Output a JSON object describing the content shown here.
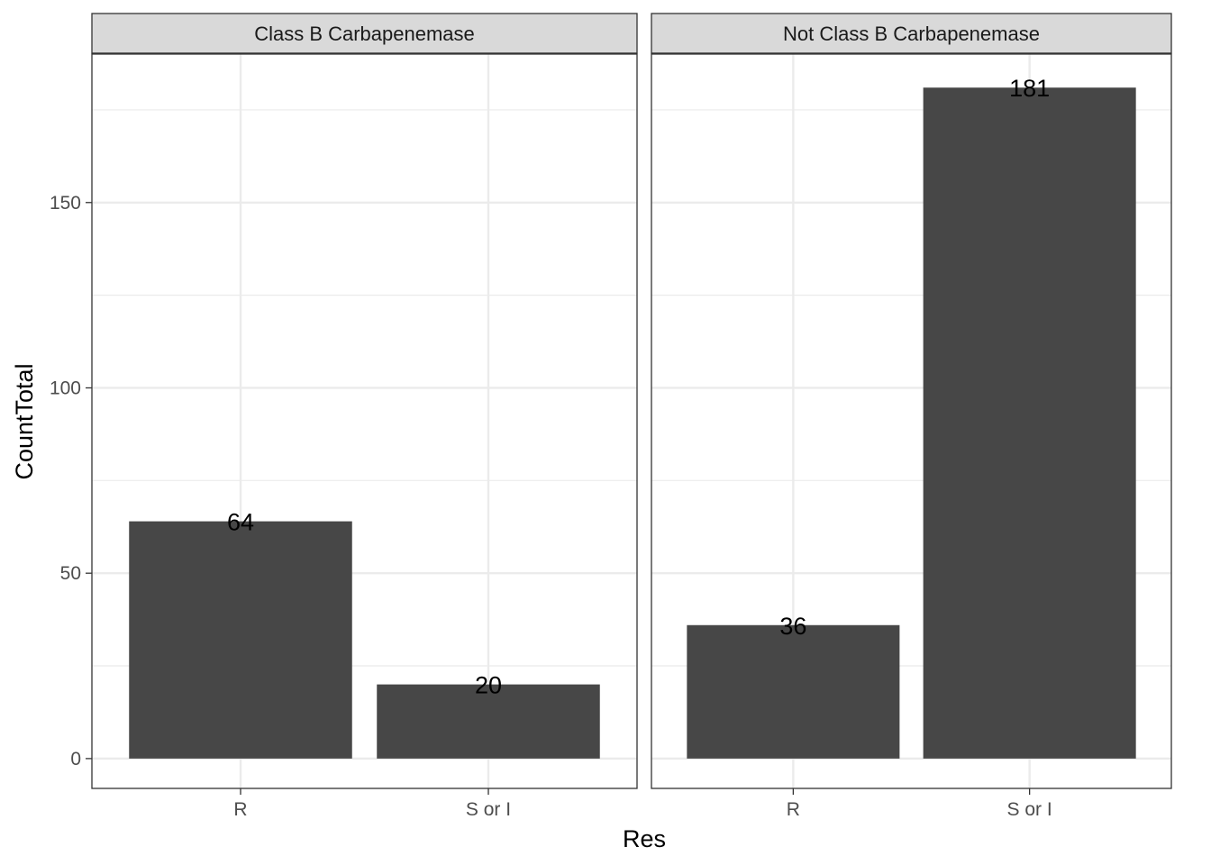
{
  "chart_data": {
    "type": "bar",
    "xlabel": "Res",
    "ylabel": "CountTotal",
    "ylim": [
      -8.05,
      190.05
    ],
    "yticks": [
      0,
      50,
      100,
      150
    ],
    "categories": [
      "R",
      "S or I"
    ],
    "grid": true,
    "bar_color": "#474747",
    "panel_border_color": "#333333",
    "strip_fill": "#d9d9d9",
    "gridline_color": "#ebebeb",
    "panels": [
      {
        "title": "Class B Carbapenemase",
        "values": [
          64,
          20
        ]
      },
      {
        "title": "Not Class B Carbapenemase",
        "values": [
          36,
          181
        ]
      }
    ]
  }
}
